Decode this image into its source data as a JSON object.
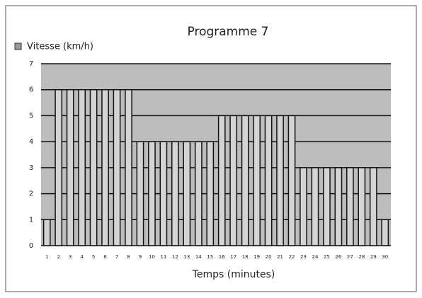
{
  "chart_data": {
    "type": "bar",
    "title": "Programme 7",
    "x_label": "Temps (minutes)",
    "legend": "Vitesse (km/h)",
    "categories": [
      "1",
      "2",
      "3",
      "4",
      "5",
      "6",
      "7",
      "8",
      "9",
      "10",
      "11",
      "12",
      "13",
      "14",
      "15",
      "16",
      "17",
      "18",
      "19",
      "20",
      "21",
      "22",
      "23",
      "24",
      "25",
      "26",
      "27",
      "28",
      "29",
      "30"
    ],
    "values": [
      1,
      6,
      6,
      6,
      6,
      6,
      6,
      6,
      4,
      4,
      4,
      4,
      4,
      4,
      4,
      5,
      5,
      5,
      5,
      5,
      5,
      5,
      3,
      3,
      3,
      3,
      3,
      3,
      3,
      1
    ],
    "color": "#d4d4d4",
    "ylim": [
      0,
      7
    ],
    "yticks": [
      0,
      1,
      2,
      3,
      4,
      5,
      6,
      7
    ],
    "grid": true
  }
}
